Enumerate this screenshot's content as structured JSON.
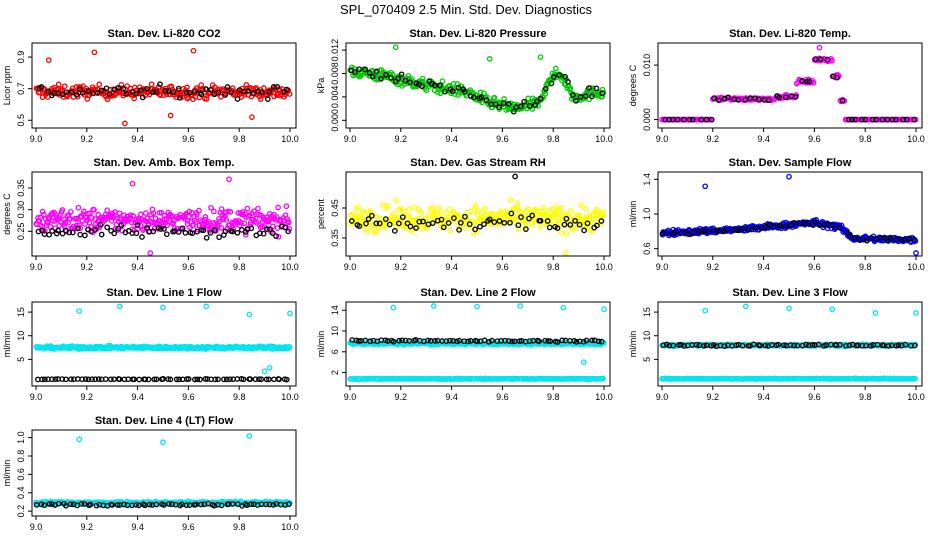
{
  "figure": {
    "title": "SPL_070409  2.5 Min. Std. Dev. Diagnostics"
  },
  "colors": {
    "red": "#ff0000",
    "green": "#00cc00",
    "magenta": "#ff00ff",
    "yellow": "#ffff00",
    "blue": "#0000ff",
    "cyan": "#00e5ee",
    "black": "#000000"
  },
  "chart_data": [
    {
      "type": "scatter",
      "title": "Stan. Dev. Li-820 CO2",
      "ylabel": "Licor ppm",
      "xlim": [
        9.0,
        10.0
      ],
      "ylim": [
        0.47,
        0.97
      ],
      "xticks": [
        "9.0",
        "9.2",
        "9.4",
        "9.6",
        "9.8",
        "10.0"
      ],
      "yticks": [
        "0.5",
        "0.7",
        "0.9"
      ],
      "ytick_values": [
        0.5,
        0.7,
        0.9
      ],
      "series": [
        {
          "name": "main",
          "color": "red",
          "base": 0.68,
          "spread": 0.09,
          "n": 260
        },
        {
          "name": "overlay",
          "color": "black",
          "base": 0.68,
          "spread": 0.08,
          "n": 60
        }
      ],
      "outliers": [
        {
          "x": 9.05,
          "y": 0.88,
          "color": "red"
        },
        {
          "x": 9.23,
          "y": 0.93,
          "color": "red"
        },
        {
          "x": 9.35,
          "y": 0.48,
          "color": "red"
        },
        {
          "x": 9.53,
          "y": 0.53,
          "color": "red"
        },
        {
          "x": 9.62,
          "y": 0.94,
          "color": "red"
        },
        {
          "x": 9.85,
          "y": 0.52,
          "color": "red"
        }
      ]
    },
    {
      "type": "scatter",
      "title": "Stan. Dev. Li-820 Pressure",
      "ylabel": "kPa",
      "xlim": [
        9.0,
        10.0
      ],
      "ylim": [
        -0.0008,
        0.0127
      ],
      "xticks": [
        "9.0",
        "9.2",
        "9.4",
        "9.6",
        "9.8",
        "10.0"
      ],
      "yticks": [
        "0.000",
        "0.004",
        "0.008",
        "0.012"
      ],
      "ytick_values": [
        0.0,
        0.004,
        0.008,
        0.012
      ],
      "profile": [
        [
          9.0,
          0.0085
        ],
        [
          9.15,
          0.0075
        ],
        [
          9.3,
          0.006
        ],
        [
          9.45,
          0.005
        ],
        [
          9.55,
          0.003
        ],
        [
          9.65,
          0.002
        ],
        [
          9.75,
          0.003
        ],
        [
          9.78,
          0.007
        ],
        [
          9.83,
          0.008
        ],
        [
          9.88,
          0.004
        ],
        [
          10.0,
          0.005
        ]
      ],
      "series": [
        {
          "name": "main",
          "color": "green",
          "spread": 0.0022,
          "n": 320
        },
        {
          "name": "overlay",
          "color": "black",
          "spread": 0.0018,
          "n": 60
        }
      ],
      "outliers": [
        {
          "x": 9.18,
          "y": 0.0125,
          "color": "green"
        },
        {
          "x": 9.55,
          "y": 0.0105,
          "color": "green"
        },
        {
          "x": 9.75,
          "y": 0.0108,
          "color": "green"
        }
      ]
    },
    {
      "type": "scatter",
      "title": "Stan. Dev. Li-820 Temp.",
      "ylabel": "degrees C",
      "xlim": [
        9.0,
        10.0
      ],
      "ylim": [
        -0.001,
        0.0135
      ],
      "xticks": [
        "9.0",
        "9.2",
        "9.4",
        "9.6",
        "9.8",
        "10.0"
      ],
      "yticks": [
        "0.000",
        "0.010"
      ],
      "ytick_values": [
        0.0,
        0.01
      ],
      "steps": [
        {
          "x0": 9.0,
          "x1": 9.2,
          "y": 0.0
        },
        {
          "x0": 9.2,
          "x1": 9.45,
          "y": 0.0038
        },
        {
          "x0": 9.45,
          "x1": 9.53,
          "y": 0.0042
        },
        {
          "x0": 9.53,
          "x1": 9.6,
          "y": 0.007
        },
        {
          "x0": 9.6,
          "x1": 9.67,
          "y": 0.011
        },
        {
          "x0": 9.67,
          "x1": 9.7,
          "y": 0.008
        },
        {
          "x0": 9.7,
          "x1": 9.72,
          "y": 0.0035
        },
        {
          "x0": 9.72,
          "x1": 10.0,
          "y": 0.0
        }
      ],
      "series": [
        {
          "name": "main",
          "color": "magenta",
          "n": 240
        },
        {
          "name": "overlay",
          "color": "black",
          "n": 50
        }
      ],
      "outliers": [
        {
          "x": 9.62,
          "y": 0.0132,
          "color": "magenta"
        }
      ]
    },
    {
      "type": "scatter",
      "title": "Stan. Dev. Amb. Box Temp.",
      "ylabel": "degrees C",
      "xlim": [
        9.0,
        10.0
      ],
      "ylim": [
        0.2,
        0.38
      ],
      "xticks": [
        "9.0",
        "9.2",
        "9.4",
        "9.6",
        "9.8",
        "10.0"
      ],
      "yticks": [
        "0.25",
        "0.30",
        "0.35"
      ],
      "ytick_values": [
        0.25,
        0.3,
        0.35
      ],
      "series": [
        {
          "name": "main",
          "color": "magenta",
          "base": 0.275,
          "spread": 0.06,
          "n": 330
        },
        {
          "name": "overlay",
          "color": "black",
          "base": 0.25,
          "spread": 0.03,
          "n": 70
        }
      ],
      "outliers": [
        {
          "x": 9.38,
          "y": 0.36,
          "color": "magenta"
        },
        {
          "x": 9.76,
          "y": 0.37,
          "color": "magenta"
        },
        {
          "x": 9.45,
          "y": 0.2,
          "color": "magenta"
        }
      ]
    },
    {
      "type": "scatter",
      "title": "Stan. Dev. Gas Stream RH",
      "ylabel": "percent",
      "xlim": [
        9.0,
        10.0
      ],
      "ylim": [
        0.3,
        0.56
      ],
      "xticks": [
        "9.0",
        "9.2",
        "9.4",
        "9.6",
        "9.8",
        "10.0"
      ],
      "yticks": [
        "0.35",
        "0.45"
      ],
      "ytick_values": [
        0.35,
        0.45
      ],
      "series": [
        {
          "name": "main",
          "color": "yellow",
          "base": 0.415,
          "spread": 0.09,
          "n": 330
        },
        {
          "name": "overlay",
          "color": "black",
          "base": 0.4,
          "spread": 0.06,
          "n": 60
        }
      ],
      "outliers": [
        {
          "x": 9.65,
          "y": 0.555,
          "color": "black"
        },
        {
          "x": 9.85,
          "y": 0.3,
          "color": "yellow"
        }
      ]
    },
    {
      "type": "scatter",
      "title": "Stan. Dev. Sample Flow",
      "ylabel": "ml/min",
      "xlim": [
        9.0,
        10.0
      ],
      "ylim": [
        0.55,
        1.45
      ],
      "xticks": [
        "9.0",
        "9.2",
        "9.4",
        "9.6",
        "9.8",
        "10.0"
      ],
      "yticks": [
        "0.6",
        "1.0",
        "1.4"
      ],
      "ytick_values": [
        0.6,
        1.0,
        1.4
      ],
      "profile": [
        [
          9.0,
          0.78
        ],
        [
          9.3,
          0.82
        ],
        [
          9.6,
          0.9
        ],
        [
          9.7,
          0.85
        ],
        [
          9.75,
          0.72
        ],
        [
          10.0,
          0.7
        ]
      ],
      "series": [
        {
          "name": "main",
          "color": "blue",
          "spread": 0.07,
          "n": 330
        },
        {
          "name": "overlay",
          "color": "black",
          "spread": 0.05,
          "n": 60
        }
      ],
      "outliers": [
        {
          "x": 9.17,
          "y": 1.32,
          "color": "blue"
        },
        {
          "x": 9.5,
          "y": 1.43,
          "color": "blue"
        },
        {
          "x": 10.0,
          "y": 0.55,
          "color": "blue"
        }
      ]
    },
    {
      "type": "scatter",
      "title": "Stan. Dev. Line 1 Flow",
      "ylabel": "ml/min",
      "xlim": [
        9.0,
        10.0
      ],
      "ylim": [
        0.0,
        16.5
      ],
      "xticks": [
        "9.0",
        "9.2",
        "9.4",
        "9.6",
        "9.8",
        "10.0"
      ],
      "yticks": [
        "5",
        "10",
        "15"
      ],
      "ytick_values": [
        5,
        10,
        15
      ],
      "series": [
        {
          "name": "main",
          "color": "cyan",
          "base": 7.5,
          "spread": 0.6,
          "n": 330
        },
        {
          "name": "overlay",
          "color": "black",
          "base": 0.8,
          "spread": 0.15,
          "n": 70
        }
      ],
      "outliers": [
        {
          "x": 9.17,
          "y": 15.2,
          "color": "cyan"
        },
        {
          "x": 9.33,
          "y": 16.2,
          "color": "cyan"
        },
        {
          "x": 9.5,
          "y": 16.0,
          "color": "cyan"
        },
        {
          "x": 9.67,
          "y": 16.2,
          "color": "cyan"
        },
        {
          "x": 9.84,
          "y": 14.5,
          "color": "cyan"
        },
        {
          "x": 10.0,
          "y": 14.7,
          "color": "cyan"
        },
        {
          "x": 9.9,
          "y": 2.5,
          "color": "cyan"
        },
        {
          "x": 9.92,
          "y": 3.2,
          "color": "cyan"
        }
      ]
    },
    {
      "type": "scatter",
      "title": "Stan. Dev. Line 2 Flow",
      "ylabel": "ml/min",
      "xlim": [
        9.0,
        10.0
      ],
      "ylim": [
        0.0,
        15.0
      ],
      "xticks": [
        "9.0",
        "9.2",
        "9.4",
        "9.6",
        "9.8",
        "10.0"
      ],
      "yticks": [
        "2",
        "6",
        "10",
        "14"
      ],
      "ytick_values": [
        2,
        6,
        10,
        14
      ],
      "series": [
        {
          "name": "main",
          "color": "cyan",
          "base": 7.6,
          "spread": 0.5,
          "n": 330
        },
        {
          "name": "overlay",
          "color": "black",
          "base": 8.1,
          "spread": 0.4,
          "n": 70
        },
        {
          "name": "low",
          "color": "cyan",
          "base": 0.8,
          "spread": 0.15,
          "n": 200
        }
      ],
      "outliers": [
        {
          "x": 9.17,
          "y": 14.5,
          "color": "cyan"
        },
        {
          "x": 9.33,
          "y": 14.8,
          "color": "cyan"
        },
        {
          "x": 9.5,
          "y": 14.7,
          "color": "cyan"
        },
        {
          "x": 9.67,
          "y": 14.8,
          "color": "cyan"
        },
        {
          "x": 9.84,
          "y": 14.5,
          "color": "cyan"
        },
        {
          "x": 10.0,
          "y": 14.2,
          "color": "cyan"
        },
        {
          "x": 9.92,
          "y": 4.0,
          "color": "cyan"
        }
      ]
    },
    {
      "type": "scatter",
      "title": "Stan. Dev. Line 3 Flow",
      "ylabel": "ml/min",
      "xlim": [
        9.0,
        10.0
      ],
      "ylim": [
        0.0,
        16.5
      ],
      "xticks": [
        "9.0",
        "9.2",
        "9.4",
        "9.6",
        "9.8",
        "10.0"
      ],
      "yticks": [
        "5",
        "10",
        "15"
      ],
      "ytick_values": [
        5,
        10,
        15
      ],
      "series": [
        {
          "name": "main",
          "color": "cyan",
          "base": 8.0,
          "spread": 0.4,
          "n": 330
        },
        {
          "name": "overlay",
          "color": "black",
          "base": 8.0,
          "spread": 0.4,
          "n": 70
        },
        {
          "name": "low",
          "color": "cyan",
          "base": 0.9,
          "spread": 0.15,
          "n": 200
        }
      ],
      "outliers": [
        {
          "x": 9.17,
          "y": 15.3,
          "color": "cyan"
        },
        {
          "x": 9.33,
          "y": 16.2,
          "color": "cyan"
        },
        {
          "x": 9.5,
          "y": 15.8,
          "color": "cyan"
        },
        {
          "x": 9.67,
          "y": 15.6,
          "color": "cyan"
        },
        {
          "x": 9.84,
          "y": 14.8,
          "color": "cyan"
        },
        {
          "x": 10.0,
          "y": 14.8,
          "color": "cyan"
        }
      ]
    },
    {
      "type": "scatter",
      "title": "Stan. Dev. Line 4 (LT) Flow",
      "ylabel": "ml/min",
      "xlim": [
        9.0,
        10.0
      ],
      "ylim": [
        0.18,
        1.05
      ],
      "xticks": [
        "9.0",
        "9.2",
        "9.4",
        "9.6",
        "9.8",
        "10.0"
      ],
      "yticks": [
        "0.2",
        "0.4",
        "0.6",
        "0.8",
        "1.0"
      ],
      "ytick_values": [
        0.2,
        0.4,
        0.6,
        0.8,
        1.0
      ],
      "series": [
        {
          "name": "main",
          "color": "cyan",
          "base": 0.29,
          "spread": 0.035,
          "n": 330
        },
        {
          "name": "overlay",
          "color": "black",
          "base": 0.27,
          "spread": 0.03,
          "n": 70
        }
      ],
      "outliers": [
        {
          "x": 9.17,
          "y": 0.98,
          "color": "cyan"
        },
        {
          "x": 9.5,
          "y": 0.95,
          "color": "cyan"
        },
        {
          "x": 9.84,
          "y": 1.02,
          "color": "cyan"
        }
      ]
    }
  ]
}
